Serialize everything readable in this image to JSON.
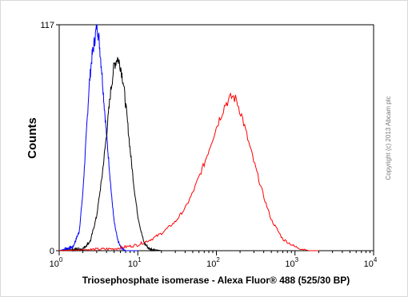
{
  "chart_data": {
    "type": "line",
    "title": "",
    "xlabel": "Triosephosphate isomerase - Alexa Fluor® 488 (525/30 BP)",
    "ylabel": "Counts",
    "xscale": "log",
    "xlim": [
      1,
      10000
    ],
    "ylim": [
      0,
      117
    ],
    "x_ticks": [
      {
        "base": "10",
        "exp": "0"
      },
      {
        "base": "10",
        "exp": "1"
      },
      {
        "base": "10",
        "exp": "2"
      },
      {
        "base": "10",
        "exp": "3"
      },
      {
        "base": "10",
        "exp": "4"
      }
    ],
    "y_ticks": [
      "0",
      "117"
    ],
    "grid": false,
    "legend": "none",
    "annotation": "Copyright (c) 2013 Abcam plc",
    "series": [
      {
        "color": "#0000ff",
        "x": [
          1.0,
          1.5,
          1.8,
          2.0,
          2.2,
          2.4,
          2.6,
          2.8,
          2.9,
          3.0,
          3.1,
          3.2,
          3.3,
          3.5,
          3.7,
          4.0,
          4.3,
          4.6,
          5.0,
          5.5,
          6.0,
          7.0,
          10.0
        ],
        "y": [
          0,
          2,
          10,
          30,
          58,
          85,
          100,
          108,
          112,
          117,
          114,
          110,
          104,
          92,
          78,
          60,
          45,
          30,
          15,
          6,
          2,
          0,
          0
        ]
      },
      {
        "color": "#000000",
        "x": [
          1.0,
          2.0,
          2.5,
          3.0,
          3.5,
          4.0,
          4.5,
          5.0,
          5.5,
          6.0,
          6.5,
          7.0,
          7.5,
          8.0,
          9.0,
          10.0,
          11.0,
          12.0,
          14.0,
          20.0
        ],
        "y": [
          0,
          1,
          5,
          18,
          38,
          60,
          82,
          96,
          100,
          96,
          88,
          76,
          64,
          52,
          32,
          18,
          10,
          4,
          1,
          0
        ]
      },
      {
        "color": "#ff0000",
        "x": [
          1.0,
          5.0,
          10.0,
          15.0,
          20.0,
          30.0,
          40.0,
          50.0,
          70.0,
          100.0,
          130.0,
          160.0,
          180.0,
          210.0,
          250.0,
          300.0,
          400.0,
          500.0,
          700.0,
          1000.0,
          1500.0,
          2000.0
        ],
        "y": [
          0,
          1,
          3,
          6,
          9,
          15,
          22,
          30,
          45,
          64,
          76,
          80,
          78,
          70,
          58,
          46,
          28,
          16,
          6,
          2,
          0,
          0
        ]
      }
    ]
  }
}
